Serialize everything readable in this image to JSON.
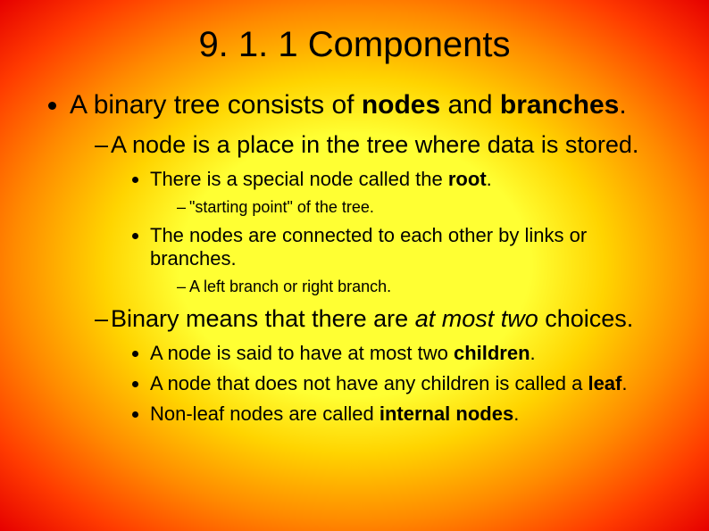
{
  "title": "9. 1. 1 Components",
  "l1": {
    "t1": "A binary tree consists of ",
    "t2": "nodes",
    "t3": " and ",
    "t4": "branches",
    "t5": "."
  },
  "l2a": "A node is a place in the tree where data is stored.",
  "l3a": {
    "t1": "There is a special node called the ",
    "t2": "root",
    "t3": "."
  },
  "l4a": "\"starting point\" of the tree.",
  "l3b": "The nodes are connected to each other by links or branches.",
  "l4b": "A left branch or right branch.",
  "l2b": {
    "t1": "Binary means that there are ",
    "t2": "at most two",
    "t3": " choices."
  },
  "l3c": {
    "t1": "A node is said to have at most two ",
    "t2": "children",
    "t3": "."
  },
  "l3d": {
    "t1": "A node that does not have any children is called a ",
    "t2": "leaf",
    "t3": "."
  },
  "l3e": {
    "t1": "Non-leaf nodes are called ",
    "t2": "internal nodes",
    "t3": "."
  }
}
